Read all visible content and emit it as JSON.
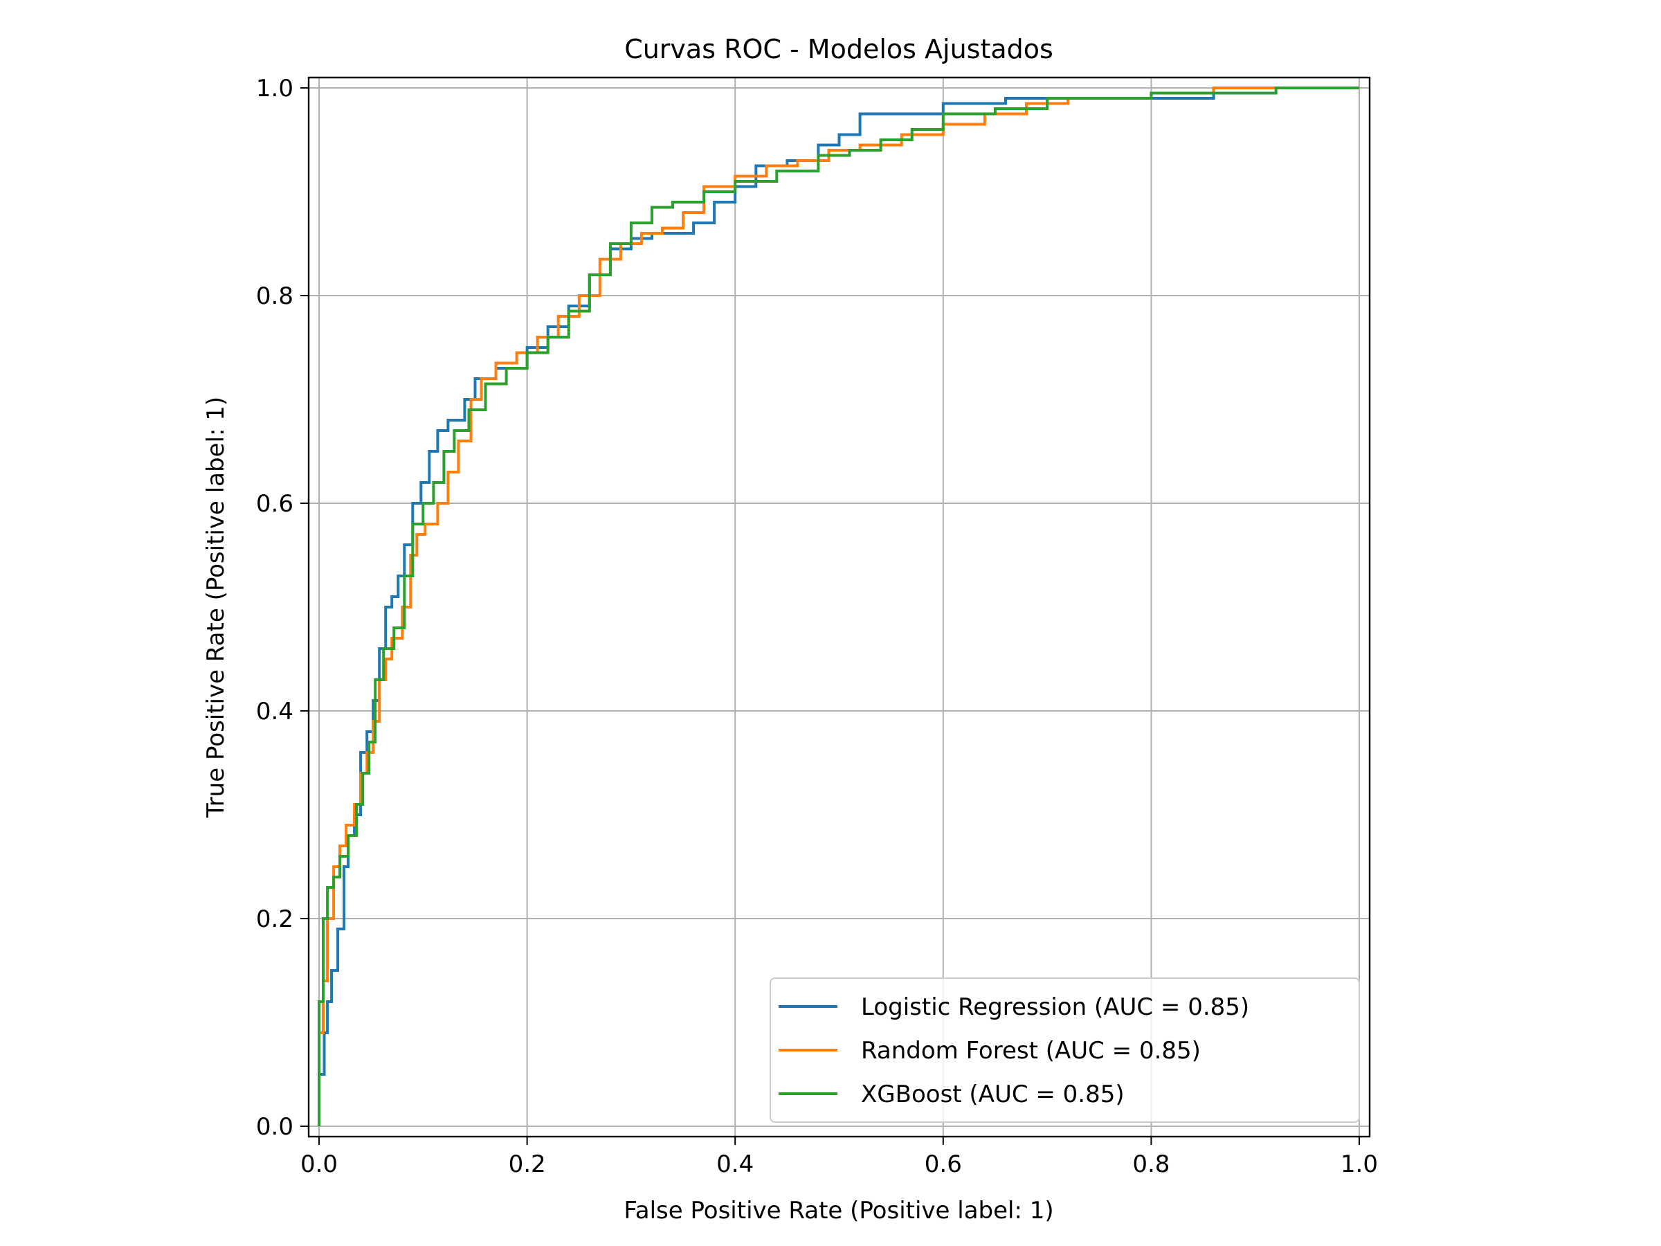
{
  "chart_data": {
    "type": "line",
    "title": "Curvas ROC - Modelos Ajustados",
    "xlabel": "False Positive Rate (Positive label: 1)",
    "ylabel": "True Positive Rate (Positive label: 1)",
    "xlim": [
      -0.01,
      1.01
    ],
    "ylim": [
      -0.01,
      1.01
    ],
    "x_ticks": [
      0.0,
      0.2,
      0.4,
      0.6,
      0.8,
      1.0
    ],
    "x_tick_labels": [
      "0.0",
      "0.2",
      "0.4",
      "0.6",
      "0.8",
      "1.0"
    ],
    "y_ticks": [
      0.0,
      0.2,
      0.4,
      0.6,
      0.8,
      1.0
    ],
    "y_tick_labels": [
      "0.0",
      "0.2",
      "0.4",
      "0.6",
      "0.8",
      "1.0"
    ],
    "grid": true,
    "legend_position": "lower-right",
    "series": [
      {
        "name": "Logistic Regression (AUC = 0.85)",
        "color": "#1f77b4",
        "points": [
          [
            0,
            0
          ],
          [
            0.005,
            0.05
          ],
          [
            0.008,
            0.09
          ],
          [
            0.012,
            0.12
          ],
          [
            0.018,
            0.15
          ],
          [
            0.024,
            0.19
          ],
          [
            0.028,
            0.25
          ],
          [
            0.034,
            0.28
          ],
          [
            0.04,
            0.3
          ],
          [
            0.046,
            0.36
          ],
          [
            0.052,
            0.38
          ],
          [
            0.058,
            0.41
          ],
          [
            0.064,
            0.46
          ],
          [
            0.07,
            0.5
          ],
          [
            0.076,
            0.51
          ],
          [
            0.082,
            0.53
          ],
          [
            0.09,
            0.56
          ],
          [
            0.098,
            0.6
          ],
          [
            0.106,
            0.62
          ],
          [
            0.114,
            0.65
          ],
          [
            0.124,
            0.67
          ],
          [
            0.14,
            0.68
          ],
          [
            0.15,
            0.7
          ],
          [
            0.17,
            0.72
          ],
          [
            0.2,
            0.73
          ],
          [
            0.22,
            0.75
          ],
          [
            0.24,
            0.77
          ],
          [
            0.26,
            0.79
          ],
          [
            0.28,
            0.82
          ],
          [
            0.3,
            0.845
          ],
          [
            0.32,
            0.855
          ],
          [
            0.36,
            0.86
          ],
          [
            0.38,
            0.87
          ],
          [
            0.4,
            0.89
          ],
          [
            0.42,
            0.905
          ],
          [
            0.45,
            0.925
          ],
          [
            0.48,
            0.93
          ],
          [
            0.5,
            0.945
          ],
          [
            0.52,
            0.955
          ],
          [
            0.56,
            0.975
          ],
          [
            0.6,
            0.975
          ],
          [
            0.66,
            0.985
          ],
          [
            0.72,
            0.99
          ],
          [
            0.8,
            0.99
          ],
          [
            0.86,
            0.99
          ],
          [
            0.92,
            1.0
          ],
          [
            1.0,
            1.0
          ]
        ]
      },
      {
        "name": "Random Forest (AUC = 0.85)",
        "color": "#ff7f0e",
        "points": [
          [
            0,
            0
          ],
          [
            0.004,
            0.09
          ],
          [
            0.008,
            0.14
          ],
          [
            0.014,
            0.2
          ],
          [
            0.02,
            0.25
          ],
          [
            0.026,
            0.27
          ],
          [
            0.034,
            0.29
          ],
          [
            0.04,
            0.31
          ],
          [
            0.046,
            0.34
          ],
          [
            0.052,
            0.36
          ],
          [
            0.058,
            0.39
          ],
          [
            0.064,
            0.43
          ],
          [
            0.07,
            0.45
          ],
          [
            0.08,
            0.47
          ],
          [
            0.088,
            0.5
          ],
          [
            0.094,
            0.55
          ],
          [
            0.102,
            0.57
          ],
          [
            0.114,
            0.58
          ],
          [
            0.124,
            0.6
          ],
          [
            0.134,
            0.63
          ],
          [
            0.146,
            0.66
          ],
          [
            0.156,
            0.7
          ],
          [
            0.17,
            0.72
          ],
          [
            0.19,
            0.735
          ],
          [
            0.21,
            0.745
          ],
          [
            0.23,
            0.76
          ],
          [
            0.25,
            0.78
          ],
          [
            0.27,
            0.8
          ],
          [
            0.29,
            0.835
          ],
          [
            0.31,
            0.85
          ],
          [
            0.33,
            0.86
          ],
          [
            0.35,
            0.865
          ],
          [
            0.37,
            0.88
          ],
          [
            0.4,
            0.905
          ],
          [
            0.43,
            0.915
          ],
          [
            0.46,
            0.925
          ],
          [
            0.49,
            0.93
          ],
          [
            0.52,
            0.94
          ],
          [
            0.56,
            0.945
          ],
          [
            0.6,
            0.955
          ],
          [
            0.64,
            0.965
          ],
          [
            0.68,
            0.975
          ],
          [
            0.72,
            0.985
          ],
          [
            0.8,
            0.99
          ],
          [
            0.86,
            0.995
          ],
          [
            0.9,
            1.0
          ],
          [
            1.0,
            1.0
          ]
        ]
      },
      {
        "name": "XGBoost (AUC = 0.85)",
        "color": "#2ca02c",
        "points": [
          [
            0,
            0
          ],
          [
            0.004,
            0.12
          ],
          [
            0.008,
            0.2
          ],
          [
            0.014,
            0.23
          ],
          [
            0.02,
            0.24
          ],
          [
            0.028,
            0.26
          ],
          [
            0.036,
            0.28
          ],
          [
            0.042,
            0.31
          ],
          [
            0.048,
            0.34
          ],
          [
            0.054,
            0.37
          ],
          [
            0.062,
            0.43
          ],
          [
            0.072,
            0.46
          ],
          [
            0.082,
            0.48
          ],
          [
            0.09,
            0.53
          ],
          [
            0.1,
            0.58
          ],
          [
            0.11,
            0.6
          ],
          [
            0.12,
            0.62
          ],
          [
            0.13,
            0.65
          ],
          [
            0.144,
            0.67
          ],
          [
            0.16,
            0.69
          ],
          [
            0.18,
            0.715
          ],
          [
            0.2,
            0.73
          ],
          [
            0.22,
            0.745
          ],
          [
            0.24,
            0.76
          ],
          [
            0.26,
            0.785
          ],
          [
            0.28,
            0.82
          ],
          [
            0.3,
            0.85
          ],
          [
            0.32,
            0.87
          ],
          [
            0.34,
            0.885
          ],
          [
            0.37,
            0.89
          ],
          [
            0.4,
            0.9
          ],
          [
            0.44,
            0.91
          ],
          [
            0.48,
            0.92
          ],
          [
            0.51,
            0.935
          ],
          [
            0.54,
            0.94
          ],
          [
            0.57,
            0.95
          ],
          [
            0.6,
            0.96
          ],
          [
            0.65,
            0.975
          ],
          [
            0.7,
            0.98
          ],
          [
            0.76,
            0.99
          ],
          [
            0.8,
            0.99
          ],
          [
            0.86,
            0.995
          ],
          [
            0.92,
            0.995
          ],
          [
            0.95,
            1.0
          ],
          [
            1.0,
            1.0
          ]
        ]
      }
    ]
  }
}
